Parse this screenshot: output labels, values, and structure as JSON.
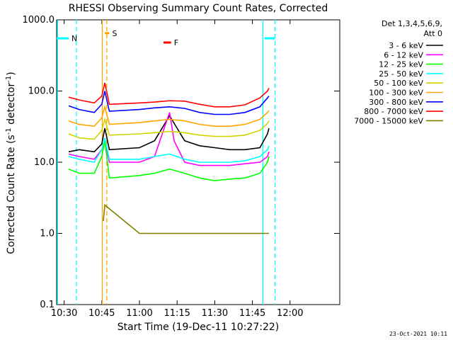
{
  "chart_data": {
    "type": "line",
    "title": "RHESSI Observing Summary Count Rates, Corrected",
    "xlabel": "Start Time (19-Dec-11 10:27:22)",
    "ylabel_main": "Corrected Count Rate (s",
    "ylabel_sup1": "-1",
    "ylabel_mid": " detector",
    "ylabel_sup2": "-1",
    "ylabel_end": ")",
    "yscale": "log",
    "ylim": [
      0.1,
      1000
    ],
    "xlim_minutes": [
      10.45,
      12.33
    ],
    "x_ticks": [
      {
        "label": "10:30",
        "t": 10.5
      },
      {
        "label": "10:45",
        "t": 10.75
      },
      {
        "label": "11:00",
        "t": 11.0
      },
      {
        "label": "11:15",
        "t": 11.25
      },
      {
        "label": "11:30",
        "t": 11.5
      },
      {
        "label": "11:45",
        "t": 11.75
      },
      {
        "label": "12:00",
        "t": 12.0
      }
    ],
    "y_ticks": [
      {
        "label": "1000.0",
        "v": 1000
      },
      {
        "label": "100.0",
        "v": 100
      },
      {
        "label": "10.0",
        "v": 10
      },
      {
        "label": "1.0",
        "v": 1
      },
      {
        "label": "0.1",
        "v": 0.1
      }
    ],
    "legend_header": [
      "Det 1,3,4,5,6,9,",
      "Att 0"
    ],
    "series": [
      {
        "name": "3 - 6 keV",
        "color": "#000000",
        "points": [
          [
            10.53,
            14
          ],
          [
            10.6,
            15
          ],
          [
            10.7,
            14
          ],
          [
            10.75,
            18
          ],
          [
            10.77,
            30
          ],
          [
            10.8,
            15
          ],
          [
            11.0,
            16
          ],
          [
            11.1,
            20
          ],
          [
            11.2,
            45
          ],
          [
            11.25,
            30
          ],
          [
            11.3,
            20
          ],
          [
            11.4,
            17
          ],
          [
            11.5,
            16
          ],
          [
            11.6,
            15
          ],
          [
            11.7,
            15
          ],
          [
            11.8,
            16
          ],
          [
            11.85,
            25
          ],
          [
            11.86,
            30
          ]
        ]
      },
      {
        "name": "6 - 12 keV",
        "color": "#ff00ff",
        "points": [
          [
            10.53,
            13
          ],
          [
            10.6,
            12
          ],
          [
            10.7,
            11
          ],
          [
            10.75,
            15
          ],
          [
            10.77,
            20
          ],
          [
            10.8,
            10
          ],
          [
            11.0,
            10
          ],
          [
            11.1,
            12
          ],
          [
            11.2,
            50
          ],
          [
            11.23,
            20
          ],
          [
            11.3,
            10
          ],
          [
            11.4,
            9
          ],
          [
            11.5,
            9
          ],
          [
            11.6,
            9
          ],
          [
            11.7,
            9.5
          ],
          [
            11.8,
            10
          ],
          [
            11.85,
            12
          ],
          [
            11.86,
            14
          ]
        ]
      },
      {
        "name": "12 - 25 keV",
        "color": "#00ff00",
        "points": [
          [
            10.53,
            8
          ],
          [
            10.6,
            7
          ],
          [
            10.7,
            7
          ],
          [
            10.75,
            12
          ],
          [
            10.77,
            20
          ],
          [
            10.8,
            6
          ],
          [
            11.0,
            6.5
          ],
          [
            11.1,
            7
          ],
          [
            11.2,
            8
          ],
          [
            11.3,
            7
          ],
          [
            11.4,
            6
          ],
          [
            11.5,
            5.5
          ],
          [
            11.6,
            5.8
          ],
          [
            11.7,
            6
          ],
          [
            11.8,
            7
          ],
          [
            11.85,
            10
          ],
          [
            11.86,
            12
          ]
        ]
      },
      {
        "name": "25 - 50 keV",
        "color": "#00ffff",
        "points": [
          [
            10.53,
            12
          ],
          [
            10.6,
            11
          ],
          [
            10.7,
            10
          ],
          [
            10.75,
            15
          ],
          [
            10.77,
            22
          ],
          [
            10.8,
            11
          ],
          [
            11.0,
            11
          ],
          [
            11.1,
            12
          ],
          [
            11.2,
            13
          ],
          [
            11.3,
            11
          ],
          [
            11.4,
            10
          ],
          [
            11.5,
            10
          ],
          [
            11.6,
            10
          ],
          [
            11.7,
            10.5
          ],
          [
            11.8,
            12
          ],
          [
            11.85,
            15
          ],
          [
            11.86,
            17
          ]
        ]
      },
      {
        "name": "50 - 100 keV",
        "color": "#d2d200",
        "points": [
          [
            10.53,
            25
          ],
          [
            10.6,
            22
          ],
          [
            10.7,
            21
          ],
          [
            10.75,
            28
          ],
          [
            10.77,
            40
          ],
          [
            10.8,
            24
          ],
          [
            11.0,
            25
          ],
          [
            11.1,
            26
          ],
          [
            11.2,
            27
          ],
          [
            11.3,
            26
          ],
          [
            11.4,
            24
          ],
          [
            11.5,
            23
          ],
          [
            11.6,
            23
          ],
          [
            11.7,
            24
          ],
          [
            11.8,
            28
          ],
          [
            11.85,
            35
          ],
          [
            11.86,
            38
          ]
        ]
      },
      {
        "name": "100 - 300 keV",
        "color": "#ffa500",
        "points": [
          [
            10.53,
            38
          ],
          [
            10.6,
            34
          ],
          [
            10.7,
            32
          ],
          [
            10.75,
            42
          ],
          [
            10.77,
            60
          ],
          [
            10.8,
            34
          ],
          [
            11.0,
            36
          ],
          [
            11.1,
            38
          ],
          [
            11.2,
            40
          ],
          [
            11.3,
            38
          ],
          [
            11.4,
            34
          ],
          [
            11.5,
            32
          ],
          [
            11.6,
            32
          ],
          [
            11.7,
            34
          ],
          [
            11.8,
            40
          ],
          [
            11.85,
            50
          ],
          [
            11.86,
            53
          ]
        ]
      },
      {
        "name": "300 - 800 keV",
        "color": "#0000ff",
        "points": [
          [
            10.53,
            62
          ],
          [
            10.6,
            55
          ],
          [
            10.7,
            50
          ],
          [
            10.75,
            65
          ],
          [
            10.77,
            100
          ],
          [
            10.8,
            52
          ],
          [
            11.0,
            55
          ],
          [
            11.1,
            58
          ],
          [
            11.2,
            60
          ],
          [
            11.3,
            57
          ],
          [
            11.4,
            50
          ],
          [
            11.5,
            47
          ],
          [
            11.6,
            47
          ],
          [
            11.7,
            50
          ],
          [
            11.8,
            60
          ],
          [
            11.85,
            80
          ],
          [
            11.86,
            85
          ]
        ]
      },
      {
        "name": "800 - 7000 keV",
        "color": "#ff0000",
        "points": [
          [
            10.53,
            82
          ],
          [
            10.6,
            75
          ],
          [
            10.7,
            68
          ],
          [
            10.75,
            85
          ],
          [
            10.77,
            130
          ],
          [
            10.8,
            65
          ],
          [
            11.0,
            68
          ],
          [
            11.1,
            70
          ],
          [
            11.2,
            73
          ],
          [
            11.3,
            72
          ],
          [
            11.4,
            65
          ],
          [
            11.5,
            60
          ],
          [
            11.6,
            60
          ],
          [
            11.7,
            64
          ],
          [
            11.8,
            80
          ],
          [
            11.85,
            100
          ],
          [
            11.86,
            110
          ]
        ]
      },
      {
        "name": "7000 - 15000 keV",
        "color": "#808000",
        "points": [
          [
            10.76,
            1.5
          ],
          [
            10.77,
            2.5
          ],
          [
            11.0,
            1.0
          ],
          [
            11.3,
            1.0
          ],
          [
            11.5,
            1.0
          ],
          [
            11.83,
            1.0
          ],
          [
            11.86,
            1.0
          ]
        ]
      }
    ],
    "flags": [
      {
        "label": "N",
        "color": "#00ffff",
        "level": 550,
        "segments": [
          [
            10.45,
            10.53
          ],
          [
            11.83,
            11.9
          ]
        ]
      },
      {
        "label": "S",
        "color": "#ffa500",
        "level": 650,
        "segments": [
          [
            10.77,
            10.8
          ]
        ]
      },
      {
        "label": "F",
        "color": "#ff0000",
        "level": 480,
        "segments": [
          [
            11.16,
            11.21
          ]
        ]
      }
    ],
    "vlines": [
      {
        "t": 10.456,
        "color": "#00ffff",
        "dash": false
      },
      {
        "t": 10.581,
        "color": "#00ffff",
        "dash": true
      },
      {
        "t": 10.753,
        "color": "#ffa500",
        "dash": false
      },
      {
        "t": 10.783,
        "color": "#ffa500",
        "dash": true
      },
      {
        "t": 11.82,
        "color": "#00ffff",
        "dash": false
      },
      {
        "t": 11.9,
        "color": "#00ffff",
        "dash": true
      }
    ],
    "timestamp": "23-Oct-2021 10:11"
  }
}
